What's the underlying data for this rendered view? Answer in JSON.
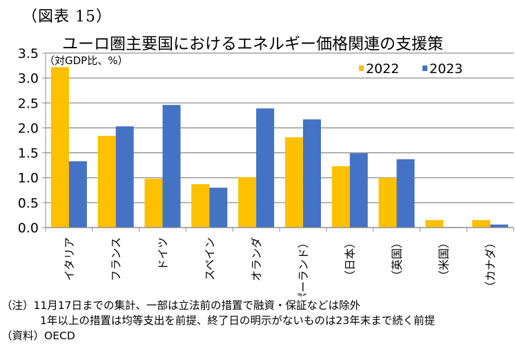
{
  "figure_label": "（図表 15）",
  "chart_data": {
    "type": "bar",
    "title": "ユーロ圏主要国におけるエネルギー価格関連の支援策",
    "ylabel": "（対GDP比、%）",
    "xlabel": "",
    "ylim": [
      0,
      3.5
    ],
    "yticks": [
      "0.0",
      "0.5",
      "1.0",
      "1.5",
      "2.0",
      "2.5",
      "3.0",
      "3.5"
    ],
    "grid": true,
    "legend_position": "top-right",
    "categories": [
      "イタリア",
      "フランス",
      "ドイツ",
      "スペイン",
      "オランダ",
      "（ポーランド）",
      "（日本）",
      "（英国）",
      "（米国）",
      "（カナダ）"
    ],
    "series": [
      {
        "name": "2022",
        "color": "#FFC000",
        "values": [
          3.22,
          1.84,
          0.98,
          0.87,
          1.01,
          1.81,
          1.23,
          1.0,
          0.15,
          0.15
        ]
      },
      {
        "name": "2023",
        "color": "#4472C4",
        "values": [
          1.33,
          2.03,
          2.46,
          0.8,
          2.39,
          2.17,
          1.49,
          1.37,
          0.01,
          0.06
        ]
      }
    ]
  },
  "notes": [
    "（注）11月17日までの集計、一部は立法前の措置で融資・保証などは除外",
    "1年以上の措置は均等支出を前提、終了日の明示がないものは23年末まで続く前提",
    "（資料）OECD"
  ]
}
